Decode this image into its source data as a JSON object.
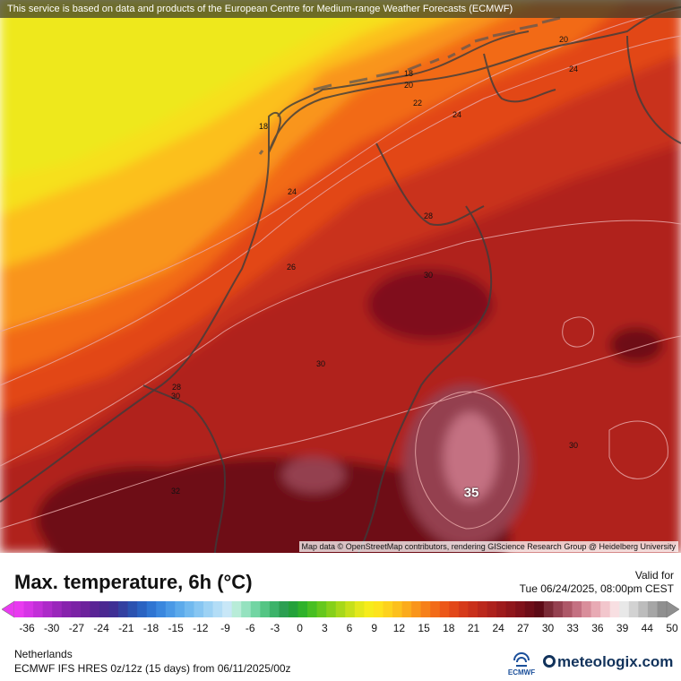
{
  "map": {
    "banner": "This service is based on data and products of the European Centre for Medium-range Weather Forecasts (ECMWF)",
    "attribution": "Map data © OpenStreetMap contributors, rendering GIScience Research Group @ Heidelberg University",
    "isotherm_labels": [
      "20",
      "24",
      "18",
      "20",
      "22",
      "24",
      "18",
      "24",
      "28",
      "26",
      "30",
      "30",
      "28",
      "30",
      "30",
      "32"
    ],
    "max_value_label": "35"
  },
  "legend": {
    "title": "Max. temperature, 6h (°C)",
    "valid_label": "Valid for",
    "valid_time": "Tue 06/24/2025, 08:00pm CEST",
    "ticks": [
      "-36",
      "-30",
      "-27",
      "-24",
      "-21",
      "-18",
      "-15",
      "-12",
      "-9",
      "-6",
      "-3",
      "0",
      "3",
      "6",
      "9",
      "12",
      "15",
      "18",
      "21",
      "24",
      "27",
      "30",
      "33",
      "36",
      "39",
      "44",
      "50"
    ],
    "colors": [
      "#e93bf0",
      "#d634e6",
      "#c22fd8",
      "#ad2ac9",
      "#9a26bb",
      "#8722ad",
      "#7b22a5",
      "#6d229c",
      "#5a2495",
      "#4b2891",
      "#3f2f94",
      "#3340a0",
      "#2b52b0",
      "#2a63c2",
      "#2f75d2",
      "#3a87de",
      "#4a99e6",
      "#5caaeb",
      "#71b9ef",
      "#87c6f2",
      "#9dd2f4",
      "#b3ddf6",
      "#c8e7f7",
      "#b8ecd8",
      "#95e2bf",
      "#72d5a3",
      "#54c584",
      "#3cb36a",
      "#2c9f52",
      "#23a13a",
      "#2fb22a",
      "#48bf22",
      "#66c81d",
      "#86d01a",
      "#a7d81a",
      "#c6e01a",
      "#e3e81b",
      "#f6ec1b",
      "#fde31c",
      "#fdd21d",
      "#fcc01d",
      "#fbab1c",
      "#f9951b",
      "#f6801a",
      "#f26b19",
      "#ec5719",
      "#e24719",
      "#d63a1a",
      "#c9301b",
      "#bb281c",
      "#ad211c",
      "#9e1b1c",
      "#8f161b",
      "#80111a",
      "#6e0d18",
      "#5d0a16",
      "#7a2a36",
      "#944150",
      "#ad5868",
      "#c47182",
      "#d98e9b",
      "#e8aab4",
      "#f2c6cc",
      "#f8dfe2",
      "#e8e8e8",
      "#d2d2d2",
      "#bcbcbc",
      "#a6a6a6",
      "#8f8f8f"
    ],
    "region": "Netherlands",
    "model": "ECMWF IFS HRES 0z/12z (15 days) from 06/11/2025/00z",
    "ecmwf_logo_text": "ECMWF",
    "brand": "meteologix.com"
  }
}
